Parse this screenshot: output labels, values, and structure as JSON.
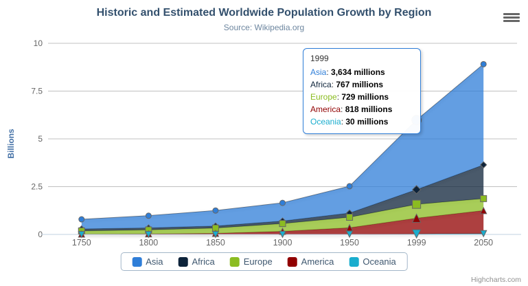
{
  "header": {
    "title": "Historic and Estimated Worldwide Population Growth by Region",
    "subtitle": "Source: Wikipedia.org"
  },
  "export_menu": {
    "icon": "hamburger-icon"
  },
  "credits": {
    "label": "Highcharts.com"
  },
  "y_axis": {
    "title": "Billions",
    "ticks": [
      0,
      2.5,
      5,
      7.5,
      10
    ]
  },
  "x_axis": {
    "categories": [
      "1750",
      "1800",
      "1850",
      "1900",
      "1950",
      "1999",
      "2050"
    ]
  },
  "tooltip": {
    "header": "1999",
    "rows": [
      {
        "name": "Asia",
        "value": "3,634 millions"
      },
      {
        "name": "Africa",
        "value": "767 millions"
      },
      {
        "name": "Europe",
        "value": "729 millions"
      },
      {
        "name": "America",
        "value": "818 millions"
      },
      {
        "name": "Oceania",
        "value": "30 millions"
      }
    ]
  },
  "chart_data": {
    "type": "area",
    "stacking": "normal",
    "title": "Historic and Estimated Worldwide Population Growth by Region",
    "subtitle": "Source: Wikipedia.org",
    "xlabel": "",
    "ylabel": "Billions",
    "ylim": [
      0,
      10
    ],
    "grid": true,
    "legend_position": "bottom",
    "units": "millions",
    "hover_index": 5,
    "categories": [
      "1750",
      "1800",
      "1850",
      "1900",
      "1950",
      "1999",
      "2050"
    ],
    "series": [
      {
        "name": "Asia",
        "color": "#2f7ed8",
        "marker": "circle",
        "values": [
          502,
          635,
          809,
          947,
          1402,
          3634,
          5268
        ]
      },
      {
        "name": "Africa",
        "color": "#0d233a",
        "marker": "diamond",
        "values": [
          106,
          107,
          111,
          133,
          221,
          767,
          1766
        ]
      },
      {
        "name": "Europe",
        "color": "#8bbc21",
        "marker": "square",
        "values": [
          163,
          203,
          276,
          408,
          547,
          729,
          628
        ]
      },
      {
        "name": "America",
        "color": "#910000",
        "marker": "triangle",
        "values": [
          18,
          31,
          54,
          156,
          339,
          818,
          1201
        ]
      },
      {
        "name": "Oceania",
        "color": "#1aadce",
        "marker": "triangle-down",
        "values": [
          2,
          2,
          2,
          6,
          13,
          30,
          46
        ]
      }
    ],
    "styles": {
      "line_color": "#666666",
      "fill_opacity": 0.75,
      "grid_color": "#c0c0c0",
      "axis_line_color": "#c0d0e0",
      "label_color": "#666666",
      "tooltip_border": "#2f7ed8"
    }
  }
}
